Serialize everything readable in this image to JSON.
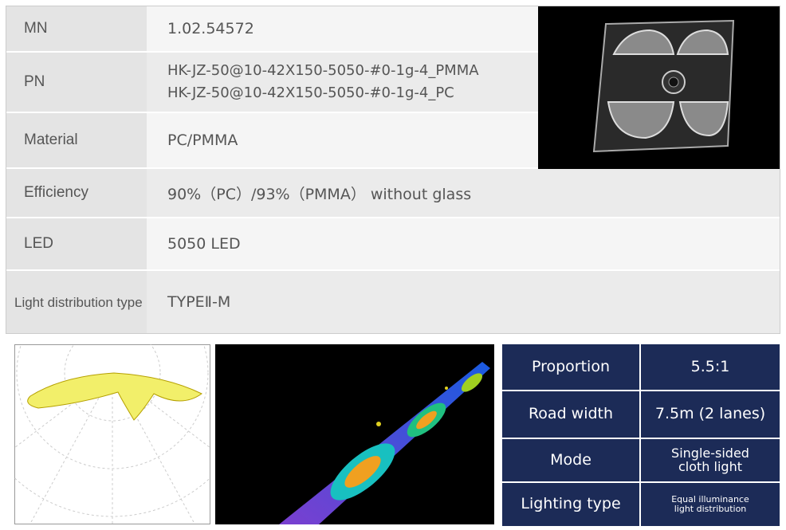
{
  "spec_table": {
    "rows": [
      {
        "label": "MN",
        "values": [
          "1.02.54572"
        ]
      },
      {
        "label": "PN",
        "values": [
          "HK-JZ-50@10-42X150-5050-#0-1g-4_PMMA",
          "HK-JZ-50@10-42X150-5050-#0-1g-4_PC"
        ]
      },
      {
        "label": "Material",
        "values": [
          "PC/PMMA"
        ]
      },
      {
        "label": "Efficiency",
        "values": [
          "90%（PC）/93%（PMMA） without glass"
        ]
      },
      {
        "label": "LED",
        "values": [
          "5050 LED"
        ]
      },
      {
        "label": "Light distribution type",
        "values": [
          "TYPEⅡ-M"
        ]
      }
    ]
  },
  "summary_table": {
    "rows": [
      {
        "label": "Proportion",
        "value": "5.5:1"
      },
      {
        "label": "Road width",
        "value": "7.5m (2 lanes)"
      },
      {
        "label": "Mode",
        "value": "Single-sided cloth light"
      },
      {
        "label": "Lighting type",
        "value": "Equal illuminance light distribution"
      }
    ]
  }
}
